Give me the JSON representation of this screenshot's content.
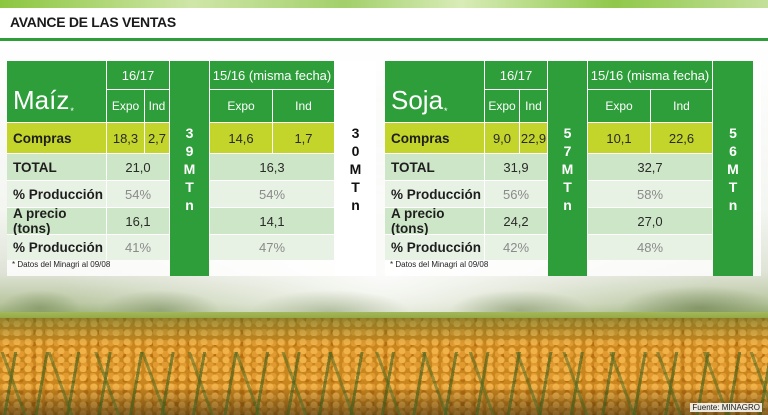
{
  "title": "AVANCE DE LAS VENTAS",
  "source": "Fuente: MINAGRO",
  "colors": {
    "green": "#2e9e3a",
    "yellow": "#c3d52a",
    "light_green": "#cde6c7"
  },
  "tables": [
    {
      "crop": "Maíz",
      "crop_mark": "*",
      "season_current": "16/17",
      "season_prev": "15/16 (misma fecha)",
      "col_expo": "Expo",
      "col_ind": "Ind",
      "total_current": [
        "3",
        "9",
        "M",
        "T",
        "n"
      ],
      "total_prev": [
        "3",
        "0",
        "M",
        "T",
        "n"
      ],
      "rows": [
        {
          "label": "Compras",
          "cur_expo": "18,3",
          "cur_ind": "2,7",
          "prev_expo": "14,6",
          "prev_ind": "1,7"
        },
        {
          "label": "TOTAL",
          "cur": "21,0",
          "prev": "16,3"
        },
        {
          "label": "% Producción",
          "cur": "54%",
          "prev": "54%"
        },
        {
          "label": "A precio (tons)",
          "cur": "16,1",
          "prev": "14,1"
        },
        {
          "label": "% Producción",
          "cur": "41%",
          "prev": "47%"
        }
      ],
      "footnote": "* Datos del Minagri al 09/08"
    },
    {
      "crop": "Soja",
      "crop_mark": "*",
      "season_current": "16/17",
      "season_prev": "15/16 (misma fecha)",
      "col_expo": "Expo",
      "col_ind": "Ind",
      "total_current": [
        "5",
        "7",
        "M",
        "T",
        "n"
      ],
      "total_prev": [
        "5",
        "6",
        "M",
        "T",
        "n"
      ],
      "rows": [
        {
          "label": "Compras",
          "cur_expo": "9,0",
          "cur_ind": "22,9",
          "prev_expo": "10,1",
          "prev_ind": "22,6"
        },
        {
          "label": "TOTAL",
          "cur": "31,9",
          "prev": "32,7"
        },
        {
          "label": "% Producción",
          "cur": "56%",
          "prev": "58%"
        },
        {
          "label": "A precio (tons)",
          "cur": "24,2",
          "prev": "27,0"
        },
        {
          "label": "% Producción",
          "cur": "42%",
          "prev": "48%"
        }
      ],
      "footnote": "* Datos del Minagri al 09/08"
    }
  ]
}
